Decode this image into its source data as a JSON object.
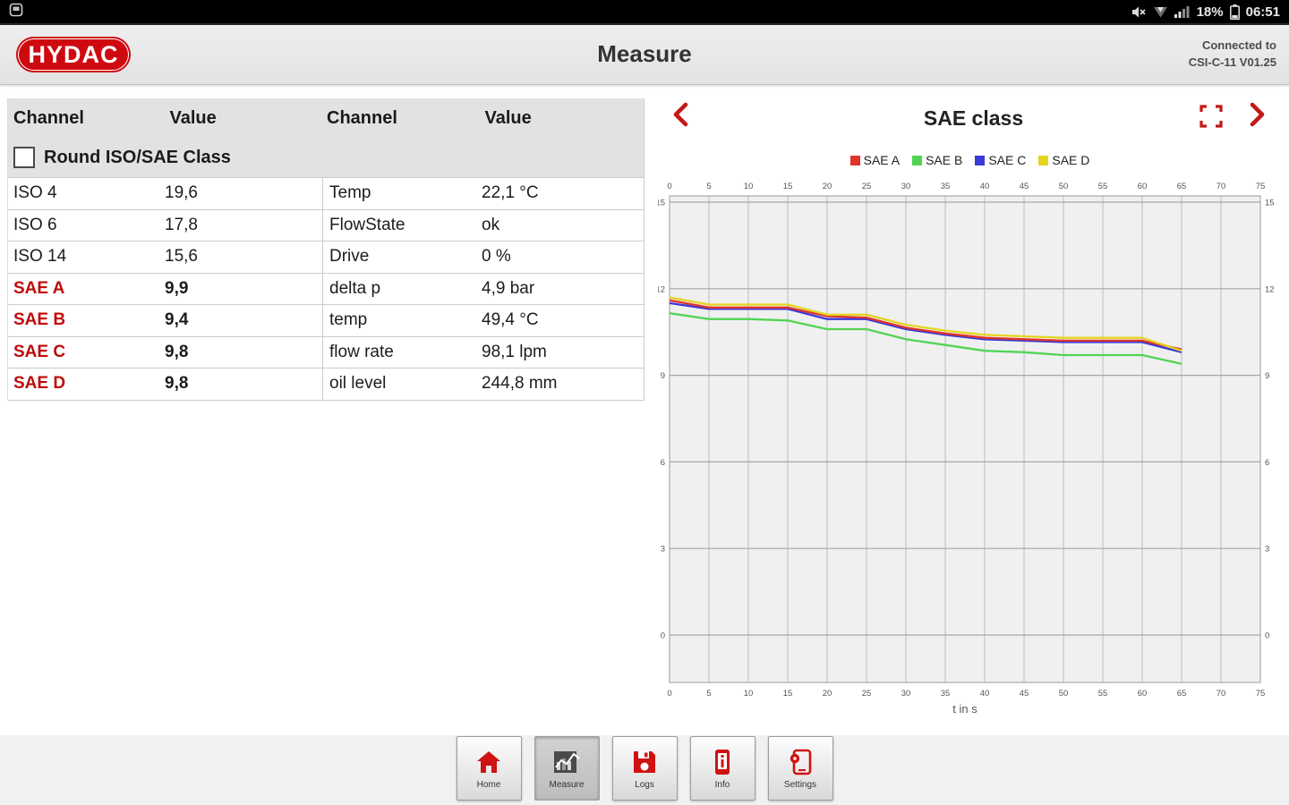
{
  "status_bar": {
    "time": "06:51",
    "battery_percent": "18%"
  },
  "app_bar": {
    "logo_text": "HYDAC",
    "title": "Measure",
    "connection_line1": "Connected to",
    "connection_line2": "CSI-C-11 V01.25"
  },
  "measure_table": {
    "headers": [
      "Channel",
      "Value",
      "Channel",
      "Value"
    ],
    "round_checkbox_label": "Round ISO/SAE Class",
    "round_checkbox_checked": false,
    "rows": [
      {
        "ch1": "ISO 4",
        "v1": "19,6",
        "ch2": "Temp",
        "v2": "22,1 °C",
        "highlight": false
      },
      {
        "ch1": "ISO 6",
        "v1": "17,8",
        "ch2": "FlowState",
        "v2": "ok",
        "highlight": false
      },
      {
        "ch1": "ISO 14",
        "v1": "15,6",
        "ch2": "Drive",
        "v2": "0 %",
        "highlight": false
      },
      {
        "ch1": "SAE A",
        "v1": "9,9",
        "ch2": "delta p",
        "v2": "4,9 bar",
        "highlight": true
      },
      {
        "ch1": "SAE B",
        "v1": "9,4",
        "ch2": "temp",
        "v2": "49,4 °C",
        "highlight": true
      },
      {
        "ch1": "SAE C",
        "v1": "9,8",
        "ch2": "flow rate",
        "v2": "98,1 lpm",
        "highlight": true
      },
      {
        "ch1": "SAE D",
        "v1": "9,8",
        "ch2": "oil level",
        "v2": "244,8 mm",
        "highlight": true
      }
    ]
  },
  "chart_panel": {
    "title": "SAE class"
  },
  "chart_data": {
    "type": "line",
    "title": "SAE class",
    "xlabel": "t in s",
    "ylabel": "",
    "xlim": [
      0,
      75
    ],
    "ylim": [
      -1.65,
      15.2
    ],
    "x_ticks": [
      0,
      5,
      10,
      15,
      20,
      25,
      30,
      35,
      40,
      45,
      50,
      55,
      60,
      65,
      70,
      75
    ],
    "y_ticks": [
      0,
      3,
      6,
      9,
      12,
      15
    ],
    "grid": true,
    "legend_position": "top",
    "x": [
      0,
      5,
      10,
      15,
      20,
      25,
      30,
      35,
      40,
      45,
      50,
      55,
      60,
      65
    ],
    "series": [
      {
        "name": "SAE A",
        "color": "#e03428",
        "values": [
          11.6,
          11.35,
          11.35,
          11.35,
          11.05,
          11.0,
          10.65,
          10.45,
          10.3,
          10.25,
          10.2,
          10.2,
          10.2,
          9.9
        ]
      },
      {
        "name": "SAE B",
        "color": "#52d452",
        "values": [
          11.15,
          10.95,
          10.95,
          10.9,
          10.6,
          10.6,
          10.25,
          10.05,
          9.85,
          9.8,
          9.7,
          9.7,
          9.7,
          9.4
        ]
      },
      {
        "name": "SAE C",
        "color": "#3a3ad8",
        "values": [
          11.5,
          11.3,
          11.3,
          11.3,
          10.95,
          10.95,
          10.6,
          10.4,
          10.25,
          10.2,
          10.15,
          10.15,
          10.15,
          9.8
        ]
      },
      {
        "name": "SAE D",
        "color": "#e6d41e",
        "values": [
          11.7,
          11.45,
          11.45,
          11.45,
          11.1,
          11.1,
          10.75,
          10.55,
          10.4,
          10.35,
          10.3,
          10.3,
          10.3,
          9.85
        ]
      }
    ]
  },
  "bottom_nav": {
    "active_index": 1,
    "items": [
      {
        "label": "Home",
        "icon": "home-icon"
      },
      {
        "label": "Measure",
        "icon": "measure-chart-icon"
      },
      {
        "label": "Logs",
        "icon": "save-floppy-icon"
      },
      {
        "label": "Info",
        "icon": "device-info-icon"
      },
      {
        "label": "Settings",
        "icon": "device-settings-icon"
      }
    ]
  },
  "colors": {
    "accent_red": "#c41818",
    "logo_red": "#cf0910",
    "plot_bg": "#f0f0f0",
    "grid_minor": "#bcbcbc",
    "grid_major": "#a6a6a6",
    "header_gray": "#e2e2e2"
  }
}
